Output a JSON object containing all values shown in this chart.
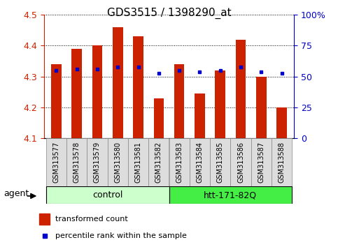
{
  "title": "GDS3515 / 1398290_at",
  "samples": [
    "GSM313577",
    "GSM313578",
    "GSM313579",
    "GSM313580",
    "GSM313581",
    "GSM313582",
    "GSM313583",
    "GSM313584",
    "GSM313585",
    "GSM313586",
    "GSM313587",
    "GSM313588"
  ],
  "red_values": [
    4.34,
    4.39,
    4.4,
    4.46,
    4.43,
    4.23,
    4.34,
    4.245,
    4.32,
    4.42,
    4.3,
    4.2
  ],
  "blue_values": [
    4.32,
    4.325,
    4.325,
    4.33,
    4.33,
    4.31,
    4.32,
    4.315,
    4.32,
    4.33,
    4.315,
    4.31
  ],
  "ylim_left": [
    4.1,
    4.5
  ],
  "ylim_right": [
    0,
    100
  ],
  "yticks_left": [
    4.1,
    4.2,
    4.3,
    4.4,
    4.5
  ],
  "yticks_right": [
    0,
    25,
    50,
    75,
    100
  ],
  "ytick_labels_right": [
    "0",
    "25",
    "50",
    "75",
    "100%"
  ],
  "bar_color": "#cc2200",
  "dot_color": "#0000cc",
  "ctrl_color": "#ccffcc",
  "htt_color": "#44ee44",
  "group_boundary": 6,
  "legend_red": "transformed count",
  "legend_blue": "percentile rank within the sample",
  "figsize": [
    4.83,
    3.54
  ],
  "dpi": 100
}
